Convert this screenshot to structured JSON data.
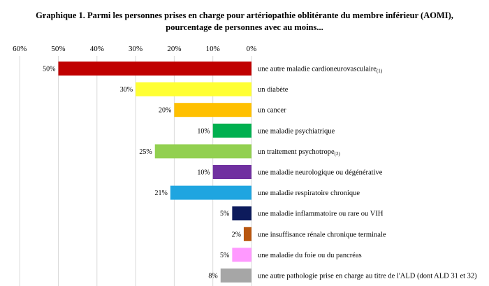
{
  "title_line1": "Graphique 1. Parmi les personnes prises en charge pour artériopathie oblitérante du membre inférieur (AOMI),",
  "title_line2": "pourcentage de personnes avec au moins...",
  "chart_data": {
    "type": "bar",
    "orientation": "horizontal",
    "x_direction": "reversed",
    "title": "Graphique 1. Parmi les personnes prises en charge pour artériopathie oblitérante du membre inférieur (AOMI), pourcentage de personnes avec au moins...",
    "xlim": [
      0,
      60
    ],
    "ticks": [
      "60%",
      "50%",
      "40%",
      "30%",
      "20%",
      "10%",
      "0%"
    ],
    "tick_values": [
      60,
      50,
      40,
      30,
      20,
      10,
      0
    ],
    "grid": true,
    "legend": "none",
    "categories": [
      {
        "label": "une autre maladie cardioneurovasculaire",
        "note": "(1)"
      },
      {
        "label": "un diabète",
        "note": ""
      },
      {
        "label": "un cancer",
        "note": ""
      },
      {
        "label": "une maladie psychiatrique",
        "note": ""
      },
      {
        "label": "un traitement psychotrope",
        "note": "(2)"
      },
      {
        "label": "une maladie neurologique ou dégénérative",
        "note": ""
      },
      {
        "label": "une maladie respiratoire chronique",
        "note": ""
      },
      {
        "label": "une maladie inflammatoire ou rare ou VIH",
        "note": ""
      },
      {
        "label": "une insuffisance rénale chronique terminale",
        "note": ""
      },
      {
        "label": "une maladie du foie ou du pancréas",
        "note": ""
      },
      {
        "label": "une autre pathologie prise en charge au titre de l'ALD (dont ALD 31 et 32)",
        "note": ""
      }
    ],
    "values": [
      50,
      30,
      20,
      10,
      25,
      10,
      21,
      5,
      2,
      5,
      8
    ],
    "value_labels": [
      "50%",
      "30%",
      "20%",
      "10%",
      "25%",
      "10%",
      "21%",
      "5%",
      "2%",
      "5%",
      "8%"
    ],
    "colors": [
      "#C00000",
      "#FFFF33",
      "#FFC000",
      "#00B050",
      "#92D050",
      "#7030A0",
      "#1FA5E0",
      "#0D1B5C",
      "#B8560F",
      "#FF99FF",
      "#A6A6A6"
    ]
  }
}
